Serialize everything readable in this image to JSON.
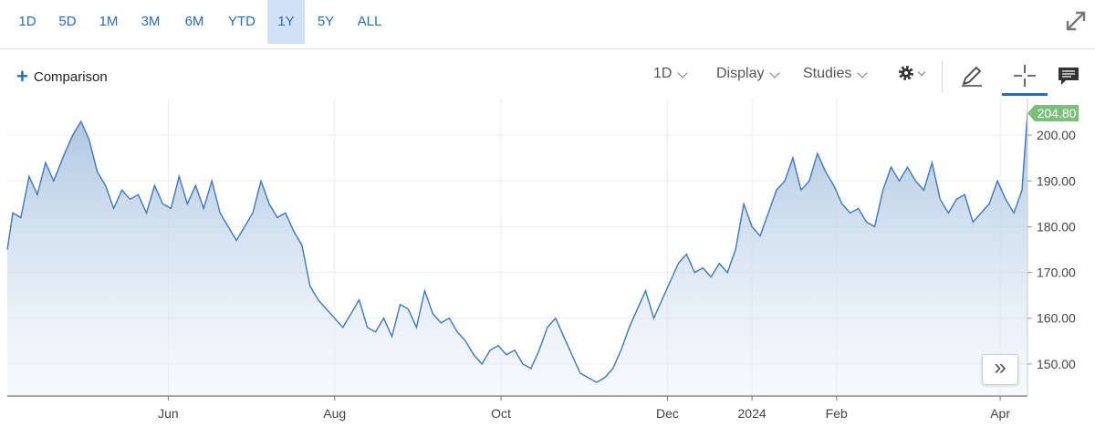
{
  "range_tabs": [
    {
      "label": "1D",
      "active": false
    },
    {
      "label": "5D",
      "active": false
    },
    {
      "label": "1M",
      "active": false
    },
    {
      "label": "3M",
      "active": false
    },
    {
      "label": "6M",
      "active": false
    },
    {
      "label": "YTD",
      "active": false
    },
    {
      "label": "1Y",
      "active": true
    },
    {
      "label": "5Y",
      "active": false
    },
    {
      "label": "ALL",
      "active": false
    }
  ],
  "toolbar": {
    "comparison_label": "Comparison",
    "interval_label": "1D",
    "display_label": "Display",
    "studies_label": "Studies"
  },
  "icons": {
    "expand": "expand-icon",
    "settings": "gear-icon",
    "draw": "pencil-icon",
    "crosshair": "crosshair-icon",
    "comments": "comment-icon",
    "scroll": "double-chevron-right-icon"
  },
  "colors": {
    "accent": "#2a6cb6",
    "line": "#3d78b8",
    "active_tab": "#cfe2f7",
    "price_tag": "#7ac07a"
  },
  "chart_data": {
    "type": "area",
    "title": "",
    "xlabel": "",
    "ylabel": "",
    "ylim": [
      143,
      208
    ],
    "yticks": [
      150,
      160,
      170,
      180,
      190,
      200
    ],
    "ytick_labels": [
      "150.00",
      "160.00",
      "170.00",
      "180.00",
      "190.00",
      "200.00"
    ],
    "xticks": [
      {
        "label": "Jun",
        "x": "2023-06-01"
      },
      {
        "label": "Aug",
        "x": "2023-08-01"
      },
      {
        "label": "Oct",
        "x": "2023-10-01"
      },
      {
        "label": "Dec",
        "x": "2023-12-01"
      },
      {
        "label": "2024",
        "x": "2024-01-01"
      },
      {
        "label": "Feb",
        "x": "2024-02-01"
      },
      {
        "label": "Apr",
        "x": "2024-04-01"
      }
    ],
    "last_price_label": "204.80",
    "series": [
      {
        "points": [
          [
            "2023-04-03",
            175
          ],
          [
            "2023-04-05",
            183
          ],
          [
            "2023-04-08",
            182
          ],
          [
            "2023-04-11",
            191
          ],
          [
            "2023-04-14",
            187
          ],
          [
            "2023-04-17",
            194
          ],
          [
            "2023-04-20",
            190
          ],
          [
            "2023-04-24",
            196
          ],
          [
            "2023-04-27",
            200
          ],
          [
            "2023-04-30",
            203
          ],
          [
            "2023-05-03",
            199
          ],
          [
            "2023-05-06",
            192
          ],
          [
            "2023-05-09",
            189
          ],
          [
            "2023-05-12",
            184
          ],
          [
            "2023-05-15",
            188
          ],
          [
            "2023-05-18",
            186
          ],
          [
            "2023-05-21",
            187
          ],
          [
            "2023-05-24",
            183
          ],
          [
            "2023-05-27",
            189
          ],
          [
            "2023-05-30",
            185
          ],
          [
            "2023-06-02",
            184
          ],
          [
            "2023-06-05",
            191
          ],
          [
            "2023-06-08",
            185
          ],
          [
            "2023-06-11",
            189
          ],
          [
            "2023-06-14",
            184
          ],
          [
            "2023-06-17",
            190
          ],
          [
            "2023-06-20",
            183
          ],
          [
            "2023-06-23",
            180
          ],
          [
            "2023-06-26",
            177
          ],
          [
            "2023-06-29",
            180
          ],
          [
            "2023-07-02",
            183
          ],
          [
            "2023-07-05",
            190
          ],
          [
            "2023-07-08",
            185
          ],
          [
            "2023-07-11",
            182
          ],
          [
            "2023-07-14",
            183
          ],
          [
            "2023-07-17",
            179
          ],
          [
            "2023-07-20",
            176
          ],
          [
            "2023-07-23",
            167
          ],
          [
            "2023-07-26",
            164
          ],
          [
            "2023-07-29",
            162
          ],
          [
            "2023-08-01",
            160
          ],
          [
            "2023-08-04",
            158
          ],
          [
            "2023-08-07",
            161
          ],
          [
            "2023-08-10",
            164
          ],
          [
            "2023-08-13",
            158
          ],
          [
            "2023-08-16",
            157
          ],
          [
            "2023-08-19",
            160
          ],
          [
            "2023-08-22",
            156
          ],
          [
            "2023-08-25",
            163
          ],
          [
            "2023-08-28",
            162
          ],
          [
            "2023-08-31",
            158
          ],
          [
            "2023-09-03",
            166
          ],
          [
            "2023-09-06",
            161
          ],
          [
            "2023-09-09",
            159
          ],
          [
            "2023-09-12",
            160
          ],
          [
            "2023-09-15",
            157
          ],
          [
            "2023-09-18",
            155
          ],
          [
            "2023-09-21",
            152
          ],
          [
            "2023-09-24",
            150
          ],
          [
            "2023-09-27",
            153
          ],
          [
            "2023-09-30",
            154
          ],
          [
            "2023-10-03",
            152
          ],
          [
            "2023-10-06",
            153
          ],
          [
            "2023-10-09",
            150
          ],
          [
            "2023-10-12",
            149
          ],
          [
            "2023-10-15",
            153
          ],
          [
            "2023-10-18",
            158
          ],
          [
            "2023-10-21",
            160
          ],
          [
            "2023-10-24",
            156
          ],
          [
            "2023-10-27",
            152
          ],
          [
            "2023-10-30",
            148
          ],
          [
            "2023-11-02",
            147
          ],
          [
            "2023-11-05",
            146
          ],
          [
            "2023-11-08",
            147
          ],
          [
            "2023-11-11",
            149
          ],
          [
            "2023-11-14",
            153
          ],
          [
            "2023-11-17",
            158
          ],
          [
            "2023-11-20",
            162
          ],
          [
            "2023-11-23",
            166
          ],
          [
            "2023-11-26",
            160
          ],
          [
            "2023-11-29",
            164
          ],
          [
            "2023-12-02",
            168
          ],
          [
            "2023-12-05",
            172
          ],
          [
            "2023-12-08",
            174
          ],
          [
            "2023-12-11",
            170
          ],
          [
            "2023-12-14",
            171
          ],
          [
            "2023-12-17",
            169
          ],
          [
            "2023-12-20",
            172
          ],
          [
            "2023-12-23",
            170
          ],
          [
            "2023-12-26",
            175
          ],
          [
            "2023-12-29",
            185
          ],
          [
            "2024-01-01",
            180
          ],
          [
            "2024-01-04",
            178
          ],
          [
            "2024-01-07",
            183
          ],
          [
            "2024-01-10",
            188
          ],
          [
            "2024-01-13",
            190
          ],
          [
            "2024-01-16",
            195
          ],
          [
            "2024-01-19",
            188
          ],
          [
            "2024-01-22",
            190
          ],
          [
            "2024-01-25",
            196
          ],
          [
            "2024-01-28",
            192
          ],
          [
            "2024-01-31",
            189
          ],
          [
            "2024-02-03",
            185
          ],
          [
            "2024-02-06",
            183
          ],
          [
            "2024-02-09",
            184
          ],
          [
            "2024-02-12",
            181
          ],
          [
            "2024-02-15",
            180
          ],
          [
            "2024-02-18",
            188
          ],
          [
            "2024-02-21",
            193
          ],
          [
            "2024-02-24",
            190
          ],
          [
            "2024-02-27",
            193
          ],
          [
            "2024-03-01",
            190
          ],
          [
            "2024-03-04",
            188
          ],
          [
            "2024-03-07",
            194
          ],
          [
            "2024-03-10",
            186
          ],
          [
            "2024-03-13",
            183
          ],
          [
            "2024-03-16",
            186
          ],
          [
            "2024-03-19",
            187
          ],
          [
            "2024-03-22",
            181
          ],
          [
            "2024-03-25",
            183
          ],
          [
            "2024-03-28",
            185
          ],
          [
            "2024-03-31",
            190
          ],
          [
            "2024-04-03",
            186
          ],
          [
            "2024-04-06",
            183
          ],
          [
            "2024-04-09",
            188
          ],
          [
            "2024-04-11",
            204.8
          ]
        ]
      }
    ]
  }
}
